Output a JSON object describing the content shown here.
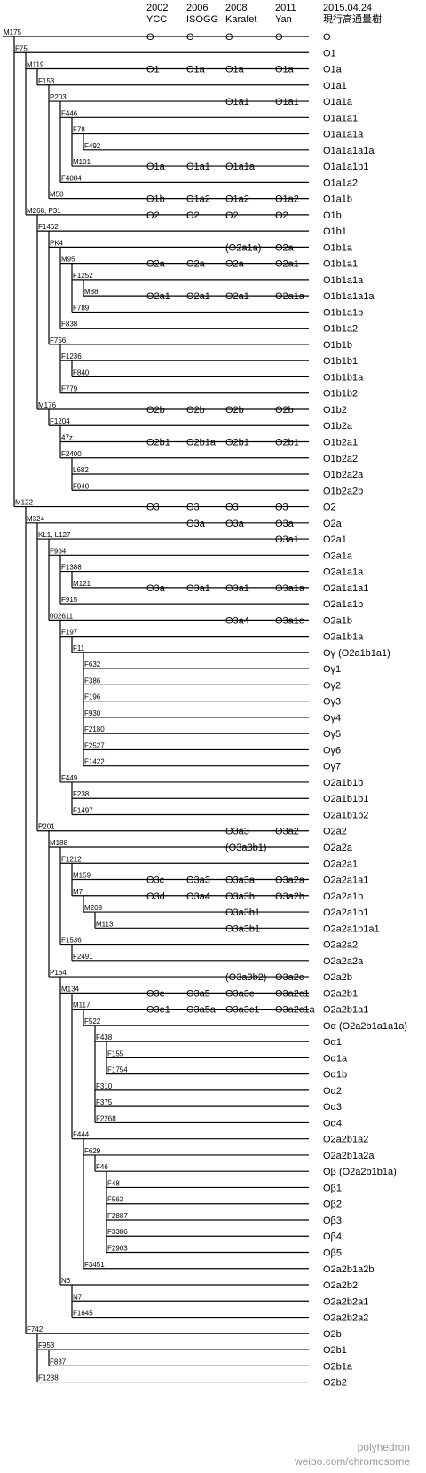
{
  "headers": [
    {
      "year": "2002",
      "name": "YCC"
    },
    {
      "year": "2006",
      "name": "ISOGG"
    },
    {
      "year": "2008",
      "name": "Karafet"
    },
    {
      "year": "2011",
      "name": "Yan"
    },
    {
      "year": "2015.04.24",
      "name": "現行高通量樹"
    }
  ],
  "watermark": {
    "line1": "polyhedron",
    "line2": "weibo.com/chromosome"
  },
  "rows": [
    {
      "depth": 0,
      "marker": "M175",
      "cols": [
        "O",
        "O",
        "O",
        "O",
        "O"
      ]
    },
    {
      "depth": 1,
      "marker": "F75",
      "cols": [
        "",
        "",
        "",
        "",
        "O1"
      ]
    },
    {
      "depth": 2,
      "marker": "M119",
      "cols": [
        "O1",
        "O1a",
        "O1a",
        "O1a",
        "O1a"
      ]
    },
    {
      "depth": 3,
      "marker": "F153",
      "cols": [
        "",
        "",
        "",
        "",
        "O1a1"
      ]
    },
    {
      "depth": 4,
      "marker": "P203",
      "cols": [
        "",
        "",
        "O1a1",
        "O1a1",
        "O1a1a"
      ]
    },
    {
      "depth": 5,
      "marker": "F446",
      "cols": [
        "",
        "",
        "",
        "",
        "O1a1a1"
      ]
    },
    {
      "depth": 6,
      "marker": "F78",
      "cols": [
        "",
        "",
        "",
        "",
        "O1a1a1a"
      ]
    },
    {
      "depth": 7,
      "marker": "F492",
      "cols": [
        "",
        "",
        "",
        "",
        "O1a1a1a1a"
      ]
    },
    {
      "depth": 6,
      "marker": "M101",
      "cols": [
        "O1a",
        "O1a1",
        "O1a1a",
        "",
        "O1a1a1b1"
      ]
    },
    {
      "depth": 5,
      "marker": "F4084",
      "cols": [
        "",
        "",
        "",
        "",
        "O1a1a2"
      ]
    },
    {
      "depth": 4,
      "marker": "M50",
      "cols": [
        "O1b",
        "O1a2",
        "O1a2",
        "O1a2",
        "O1a1b"
      ]
    },
    {
      "depth": 2,
      "marker": "M268, P31",
      "cols": [
        "O2",
        "O2",
        "O2",
        "O2",
        "O1b"
      ]
    },
    {
      "depth": 3,
      "marker": "F1462",
      "cols": [
        "",
        "",
        "",
        "",
        "O1b1"
      ]
    },
    {
      "depth": 4,
      "marker": "PK4",
      "cols": [
        "",
        "",
        "(O2a1a)",
        "O2a",
        "O1b1a"
      ]
    },
    {
      "depth": 5,
      "marker": "M95",
      "cols": [
        "O2a",
        "O2a",
        "O2a",
        "O2a1",
        "O1b1a1"
      ]
    },
    {
      "depth": 6,
      "marker": "F1252",
      "cols": [
        "",
        "",
        "",
        "",
        "O1b1a1a"
      ]
    },
    {
      "depth": 7,
      "marker": "M88",
      "cols": [
        "O2a1",
        "O2a1",
        "O2a1",
        "O2a1a",
        "O1b1a1a1a"
      ]
    },
    {
      "depth": 6,
      "marker": "F789",
      "cols": [
        "",
        "",
        "",
        "",
        "O1b1a1b"
      ]
    },
    {
      "depth": 5,
      "marker": "F838",
      "cols": [
        "",
        "",
        "",
        "",
        "O1b1a2"
      ]
    },
    {
      "depth": 4,
      "marker": "F756",
      "cols": [
        "",
        "",
        "",
        "",
        "O1b1b"
      ]
    },
    {
      "depth": 5,
      "marker": "F1236",
      "cols": [
        "",
        "",
        "",
        "",
        "O1b1b1"
      ]
    },
    {
      "depth": 6,
      "marker": "F840",
      "cols": [
        "",
        "",
        "",
        "",
        "O1b1b1a"
      ]
    },
    {
      "depth": 5,
      "marker": "F779",
      "cols": [
        "",
        "",
        "",
        "",
        "O1b1b2"
      ]
    },
    {
      "depth": 3,
      "marker": "M176",
      "cols": [
        "O2b",
        "O2b",
        "O2b",
        "O2b",
        "O1b2"
      ]
    },
    {
      "depth": 4,
      "marker": "F1204",
      "cols": [
        "",
        "",
        "",
        "",
        "O1b2a"
      ]
    },
    {
      "depth": 5,
      "marker": "47z",
      "cols": [
        "O2b1",
        "O2b1a",
        "O2b1",
        "O2b1",
        "O1b2a1"
      ]
    },
    {
      "depth": 5,
      "marker": "F2400",
      "cols": [
        "",
        "",
        "",
        "",
        "O1b2a2"
      ]
    },
    {
      "depth": 6,
      "marker": "L682",
      "cols": [
        "",
        "",
        "",
        "",
        "O1b2a2a"
      ]
    },
    {
      "depth": 6,
      "marker": "F940",
      "cols": [
        "",
        "",
        "",
        "",
        "O1b2a2b"
      ]
    },
    {
      "depth": 1,
      "marker": "M122",
      "cols": [
        "O3",
        "O3",
        "O3",
        "O3",
        "O2"
      ]
    },
    {
      "depth": 2,
      "marker": "M324",
      "cols": [
        "",
        "O3a",
        "O3a",
        "O3a",
        "O2a"
      ]
    },
    {
      "depth": 3,
      "marker": "KL1, L127",
      "cols": [
        "",
        "",
        "",
        "O3a1",
        "O2a1"
      ]
    },
    {
      "depth": 4,
      "marker": "F964",
      "cols": [
        "",
        "",
        "",
        "",
        "O2a1a"
      ]
    },
    {
      "depth": 5,
      "marker": "F1388",
      "cols": [
        "",
        "",
        "",
        "",
        "O2a1a1a"
      ]
    },
    {
      "depth": 6,
      "marker": "M121",
      "cols": [
        "O3a",
        "O3a1",
        "O3a1",
        "O3a1a",
        "O2a1a1a1"
      ]
    },
    {
      "depth": 5,
      "marker": "F915",
      "cols": [
        "",
        "",
        "",
        "",
        "O2a1a1b"
      ]
    },
    {
      "depth": 4,
      "marker": "002611",
      "cols": [
        "",
        "",
        "O3a4",
        "O3a1c",
        "O2a1b"
      ]
    },
    {
      "depth": 5,
      "marker": "F197",
      "cols": [
        "",
        "",
        "",
        "",
        "O2a1b1a"
      ]
    },
    {
      "depth": 6,
      "marker": "F11",
      "cols": [
        "",
        "",
        "",
        "",
        "Oγ (O2a1b1a1)"
      ]
    },
    {
      "depth": 7,
      "marker": "F632",
      "cols": [
        "",
        "",
        "",
        "",
        "Oγ1"
      ]
    },
    {
      "depth": 7,
      "marker": "F386",
      "cols": [
        "",
        "",
        "",
        "",
        "Oγ2"
      ]
    },
    {
      "depth": 7,
      "marker": "F196",
      "cols": [
        "",
        "",
        "",
        "",
        "Oγ3"
      ]
    },
    {
      "depth": 7,
      "marker": "F930",
      "cols": [
        "",
        "",
        "",
        "",
        "Oγ4"
      ]
    },
    {
      "depth": 7,
      "marker": "F2180",
      "cols": [
        "",
        "",
        "",
        "",
        "Oγ5"
      ]
    },
    {
      "depth": 7,
      "marker": "F2527",
      "cols": [
        "",
        "",
        "",
        "",
        "Oγ6"
      ]
    },
    {
      "depth": 7,
      "marker": "F1422",
      "cols": [
        "",
        "",
        "",
        "",
        "Oγ7"
      ]
    },
    {
      "depth": 5,
      "marker": "F449",
      "cols": [
        "",
        "",
        "",
        "",
        "O2a1b1b"
      ]
    },
    {
      "depth": 6,
      "marker": "F238",
      "cols": [
        "",
        "",
        "",
        "",
        "O2a1b1b1"
      ]
    },
    {
      "depth": 6,
      "marker": "F1497",
      "cols": [
        "",
        "",
        "",
        "",
        "O2a1b1b2"
      ]
    },
    {
      "depth": 3,
      "marker": "P201",
      "cols": [
        "",
        "",
        "O3a3",
        "O3a2",
        "O2a2"
      ]
    },
    {
      "depth": 4,
      "marker": "M188",
      "cols": [
        "",
        "",
        "(O3a3b1)",
        "",
        "O2a2a"
      ]
    },
    {
      "depth": 5,
      "marker": "F1212",
      "cols": [
        "",
        "",
        "",
        "",
        "O2a2a1"
      ]
    },
    {
      "depth": 6,
      "marker": "M159",
      "cols": [
        "O3c",
        "O3a3",
        "O3a3a",
        "O3a2a",
        "O2a2a1a1"
      ]
    },
    {
      "depth": 6,
      "marker": "M7",
      "cols": [
        "O3d",
        "O3a4",
        "O3a3b",
        "O3a2b",
        "O2a2a1b"
      ]
    },
    {
      "depth": 7,
      "marker": "M209",
      "cols": [
        "",
        "",
        "O3a3b1",
        "",
        "O2a2a1b1"
      ]
    },
    {
      "depth": 8,
      "marker": "M113",
      "cols": [
        "",
        "",
        "O3a3b1",
        "",
        "O2a2a1b1a1"
      ]
    },
    {
      "depth": 5,
      "marker": "F1536",
      "cols": [
        "",
        "",
        "",
        "",
        "O2a2a2"
      ]
    },
    {
      "depth": 6,
      "marker": "F2491",
      "cols": [
        "",
        "",
        "",
        "",
        "O2a2a2a"
      ]
    },
    {
      "depth": 4,
      "marker": "P164",
      "cols": [
        "",
        "",
        "(O3a3b2)",
        "O3a2c",
        "O2a2b"
      ]
    },
    {
      "depth": 5,
      "marker": "M134",
      "cols": [
        "O3e",
        "O3a5",
        "O3a3c",
        "O3a2c1",
        "O2a2b1"
      ]
    },
    {
      "depth": 6,
      "marker": "M117",
      "cols": [
        "O3e1",
        "O3a5a",
        "O3a3c1",
        "O3a2c1a",
        "O2a2b1a1"
      ]
    },
    {
      "depth": 7,
      "marker": "F522",
      "cols": [
        "",
        "",
        "",
        "",
        "Oα (O2a2b1a1a1a)"
      ]
    },
    {
      "depth": 8,
      "marker": "F438",
      "cols": [
        "",
        "",
        "",
        "",
        "Oα1"
      ]
    },
    {
      "depth": 9,
      "marker": "F155",
      "cols": [
        "",
        "",
        "",
        "",
        "Oα1a"
      ]
    },
    {
      "depth": 9,
      "marker": "F1754",
      "cols": [
        "",
        "",
        "",
        "",
        "Oα1b"
      ]
    },
    {
      "depth": 8,
      "marker": "F310",
      "cols": [
        "",
        "",
        "",
        "",
        "Oα2"
      ]
    },
    {
      "depth": 8,
      "marker": "F375",
      "cols": [
        "",
        "",
        "",
        "",
        "Oα3"
      ]
    },
    {
      "depth": 8,
      "marker": "F2268",
      "cols": [
        "",
        "",
        "",
        "",
        "Oα4"
      ]
    },
    {
      "depth": 6,
      "marker": "F444",
      "cols": [
        "",
        "",
        "",
        "",
        "O2a2b1a2"
      ]
    },
    {
      "depth": 7,
      "marker": "F629",
      "cols": [
        "",
        "",
        "",
        "",
        "O2a2b1a2a"
      ]
    },
    {
      "depth": 8,
      "marker": "F46",
      "cols": [
        "",
        "",
        "",
        "",
        "Oβ (O2a2b1b1a)"
      ]
    },
    {
      "depth": 9,
      "marker": "F48",
      "cols": [
        "",
        "",
        "",
        "",
        "Oβ1"
      ]
    },
    {
      "depth": 9,
      "marker": "F563",
      "cols": [
        "",
        "",
        "",
        "",
        "Oβ2"
      ]
    },
    {
      "depth": 9,
      "marker": "F2887",
      "cols": [
        "",
        "",
        "",
        "",
        "Oβ3"
      ]
    },
    {
      "depth": 9,
      "marker": "F3386",
      "cols": [
        "",
        "",
        "",
        "",
        "Oβ4"
      ]
    },
    {
      "depth": 9,
      "marker": "F2903",
      "cols": [
        "",
        "",
        "",
        "",
        "Oβ5"
      ]
    },
    {
      "depth": 7,
      "marker": "F3451",
      "cols": [
        "",
        "",
        "",
        "",
        "O2a2b1a2b"
      ]
    },
    {
      "depth": 5,
      "marker": "N6",
      "cols": [
        "",
        "",
        "",
        "",
        "O2a2b2"
      ]
    },
    {
      "depth": 6,
      "marker": "N7",
      "cols": [
        "",
        "",
        "",
        "",
        "O2a2b2a1"
      ]
    },
    {
      "depth": 6,
      "marker": "F1645",
      "cols": [
        "",
        "",
        "",
        "",
        "O2a2b2a2"
      ]
    },
    {
      "depth": 2,
      "marker": "F742",
      "cols": [
        "",
        "",
        "",
        "",
        "O2b"
      ]
    },
    {
      "depth": 3,
      "marker": "F953",
      "cols": [
        "",
        "",
        "",
        "",
        "O2b1"
      ]
    },
    {
      "depth": 4,
      "marker": "F837",
      "cols": [
        "",
        "",
        "",
        "",
        "O2b1a"
      ]
    },
    {
      "depth": 3,
      "marker": "F1238",
      "cols": [
        "",
        "",
        "",
        "",
        "O2b2"
      ]
    }
  ]
}
